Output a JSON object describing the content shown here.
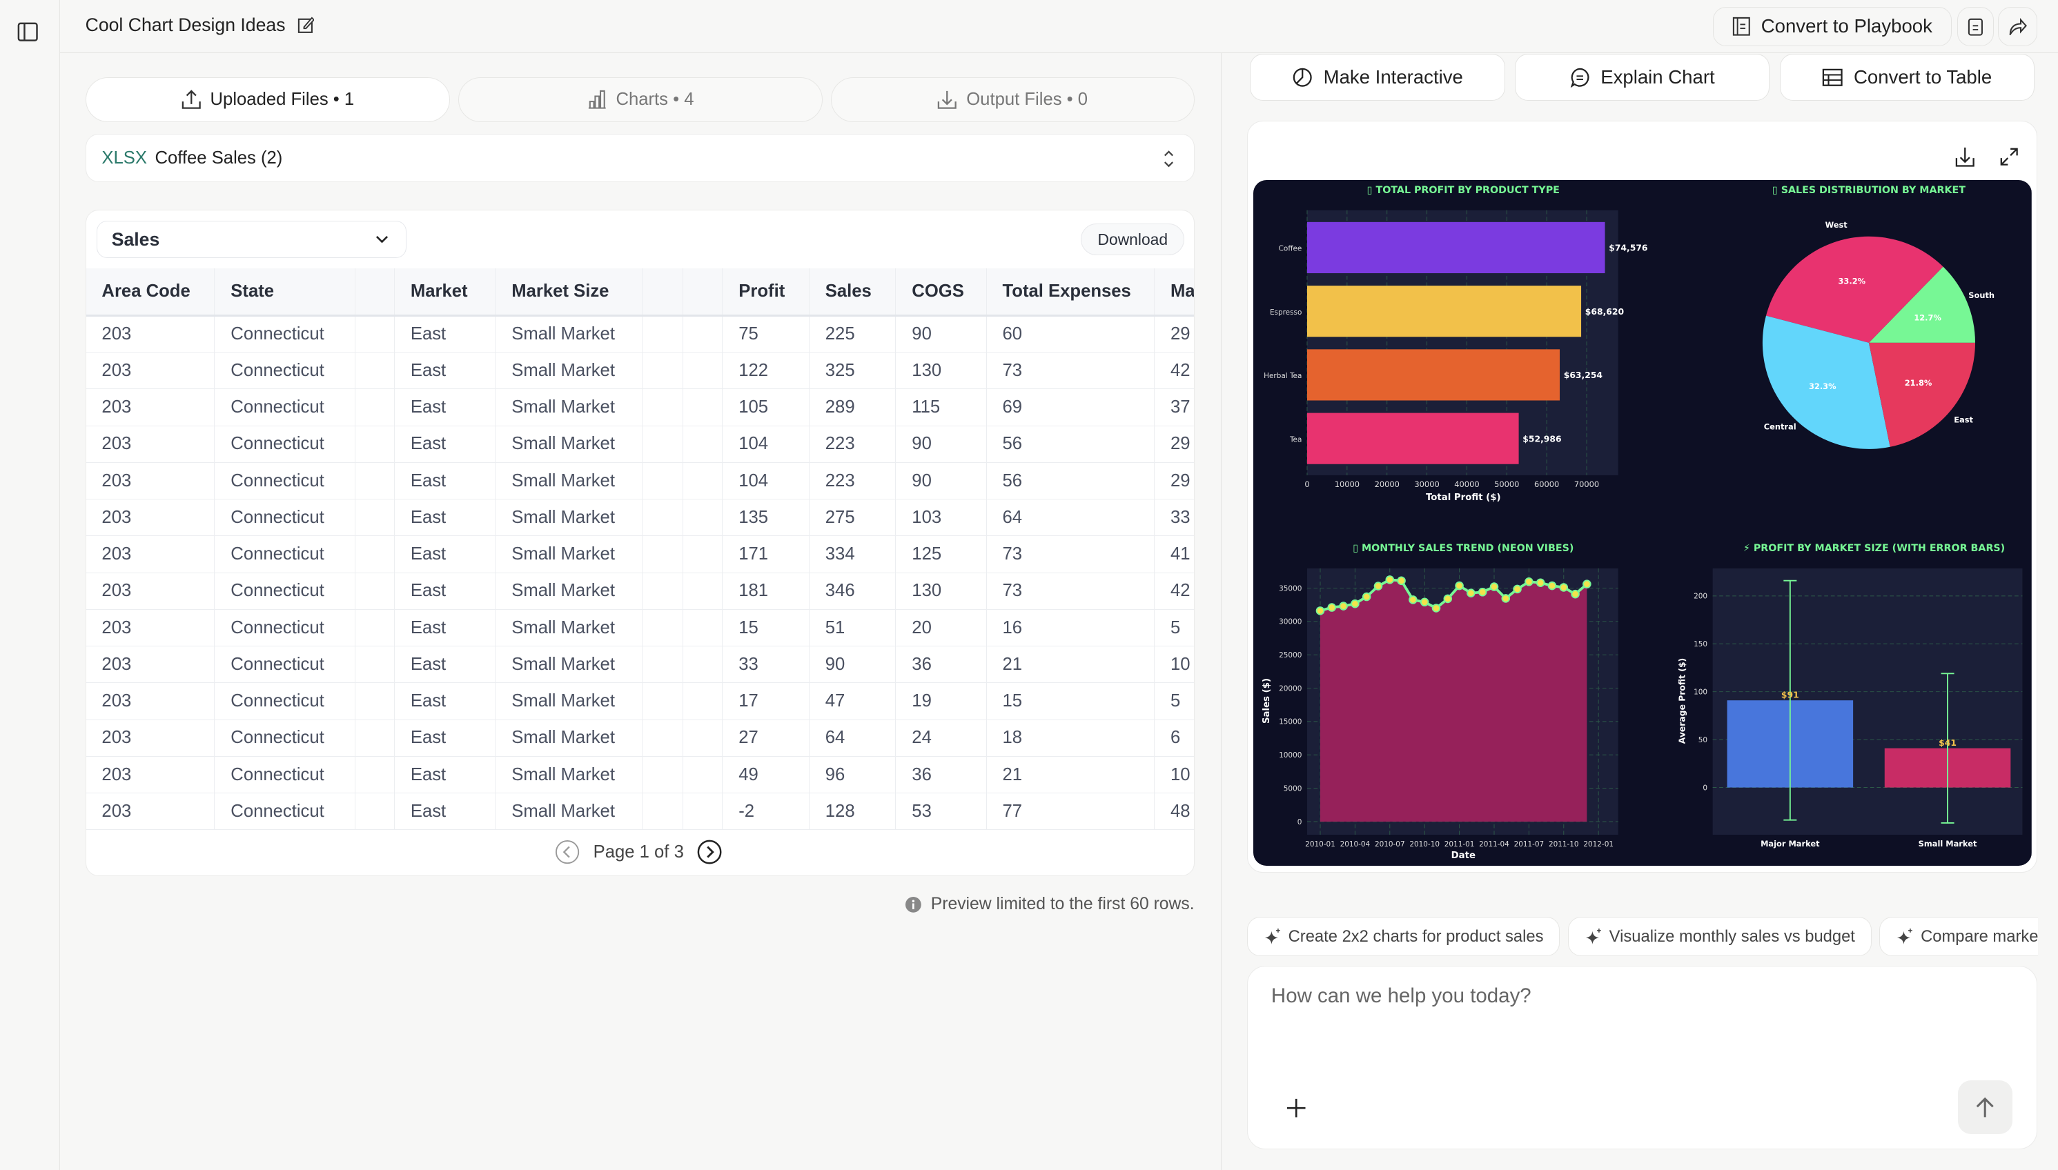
{
  "header": {
    "title": "Cool Chart Design Ideas",
    "convert_playbook": "Convert to Playbook"
  },
  "tabs": [
    {
      "label": "Uploaded Files • 1",
      "active": true
    },
    {
      "label": "Charts • 4"
    },
    {
      "label": "Output Files • 0"
    }
  ],
  "file": {
    "type": "XLSX",
    "name": "Coffee Sales (2)"
  },
  "sheet_select": {
    "value": "Sales"
  },
  "download_label": "Download",
  "table": {
    "columns": [
      "Area Code",
      "State",
      "",
      "Market",
      "Market Size",
      "",
      "",
      "Profit",
      "Sales",
      "COGS",
      "Total Expenses",
      "Ma"
    ],
    "rows": [
      [
        "203",
        "Connecticut",
        "",
        "East",
        "Small Market",
        "",
        "",
        "75",
        "225",
        "90",
        "60",
        "29"
      ],
      [
        "203",
        "Connecticut",
        "",
        "East",
        "Small Market",
        "",
        "",
        "122",
        "325",
        "130",
        "73",
        "42"
      ],
      [
        "203",
        "Connecticut",
        "",
        "East",
        "Small Market",
        "",
        "",
        "105",
        "289",
        "115",
        "69",
        "37"
      ],
      [
        "203",
        "Connecticut",
        "",
        "East",
        "Small Market",
        "",
        "",
        "104",
        "223",
        "90",
        "56",
        "29"
      ],
      [
        "203",
        "Connecticut",
        "",
        "East",
        "Small Market",
        "",
        "",
        "104",
        "223",
        "90",
        "56",
        "29"
      ],
      [
        "203",
        "Connecticut",
        "",
        "East",
        "Small Market",
        "",
        "",
        "135",
        "275",
        "103",
        "64",
        "33"
      ],
      [
        "203",
        "Connecticut",
        "",
        "East",
        "Small Market",
        "",
        "",
        "171",
        "334",
        "125",
        "73",
        "41"
      ],
      [
        "203",
        "Connecticut",
        "",
        "East",
        "Small Market",
        "",
        "",
        "181",
        "346",
        "130",
        "73",
        "42"
      ],
      [
        "203",
        "Connecticut",
        "",
        "East",
        "Small Market",
        "",
        "",
        "15",
        "51",
        "20",
        "16",
        "5"
      ],
      [
        "203",
        "Connecticut",
        "",
        "East",
        "Small Market",
        "",
        "",
        "33",
        "90",
        "36",
        "21",
        "10"
      ],
      [
        "203",
        "Connecticut",
        "",
        "East",
        "Small Market",
        "",
        "",
        "17",
        "47",
        "19",
        "15",
        "5"
      ],
      [
        "203",
        "Connecticut",
        "",
        "East",
        "Small Market",
        "",
        "",
        "27",
        "64",
        "24",
        "18",
        "6"
      ],
      [
        "203",
        "Connecticut",
        "",
        "East",
        "Small Market",
        "",
        "",
        "49",
        "96",
        "36",
        "21",
        "10"
      ],
      [
        "203",
        "Connecticut",
        "",
        "East",
        "Small Market",
        "",
        "",
        "-2",
        "128",
        "53",
        "77",
        "48"
      ]
    ]
  },
  "pagination": {
    "label": "Page 1 of 3"
  },
  "preview_note": "Preview limited to the first 60 rows.",
  "actions": {
    "make_interactive": "Make Interactive",
    "explain_chart": "Explain Chart",
    "convert_table": "Convert to Table"
  },
  "suggestions": [
    "Create 2x2 charts for product sales",
    "Visualize monthly sales vs budget",
    "Compare marke"
  ],
  "chat": {
    "placeholder": "How can we help you today?"
  },
  "colors": {
    "figure_bg": "#0d0f24",
    "plot_bg": "#1b1f38",
    "title": "#77f795",
    "accent_label": "#f2c14a"
  },
  "chart_data": [
    {
      "type": "bar",
      "orientation": "horizontal",
      "title": "▯ TOTAL PROFIT BY PRODUCT TYPE",
      "xlabel": "Total Profit ($)",
      "categories": [
        "Coffee",
        "Espresso",
        "Herbal Tea",
        "Tea"
      ],
      "values": [
        74576,
        68620,
        63254,
        52986
      ],
      "data_labels": [
        "$74,576",
        "$68,620",
        "$63,254",
        "$52,986"
      ],
      "colors": [
        "#7b3be0",
        "#f2c14a",
        "#e5632e",
        "#e8336f"
      ],
      "xticks": [
        "0",
        "10000",
        "20000",
        "30000",
        "40000",
        "50000",
        "60000",
        "70000"
      ],
      "xlim": [
        0,
        78000
      ],
      "grid": true
    },
    {
      "type": "pie",
      "title": "▯ SALES DISTRIBUTION BY MARKET",
      "categories": [
        "South",
        "West",
        "Central",
        "East"
      ],
      "values": [
        12.7,
        33.2,
        32.3,
        21.8
      ],
      "labels": [
        "12.7%",
        "33.2%",
        "32.3%",
        "21.8%"
      ],
      "colors": [
        "#77f795",
        "#e8336f",
        "#62d6fb",
        "#e6395d"
      ]
    },
    {
      "type": "area",
      "title": "▯ MONTHLY SALES TREND (NEON VIBES)",
      "xlabel": "Date",
      "ylabel": "Sales ($)",
      "x": [
        "2010-01",
        "2010-02",
        "2010-03",
        "2010-04",
        "2010-05",
        "2010-06",
        "2010-07",
        "2010-08",
        "2010-09",
        "2010-10",
        "2010-11",
        "2010-12",
        "2011-01",
        "2011-02",
        "2011-03",
        "2011-04",
        "2011-05",
        "2011-06",
        "2011-07",
        "2011-08",
        "2011-09",
        "2011-10",
        "2011-11",
        "2011-12"
      ],
      "values": [
        31600,
        32100,
        32300,
        32650,
        33700,
        35300,
        36250,
        36100,
        33250,
        32900,
        32000,
        33400,
        35350,
        34250,
        34400,
        35200,
        33450,
        34850,
        35950,
        35800,
        35350,
        35100,
        34100,
        35600
      ],
      "xticks": [
        "2010-01",
        "2010-04",
        "2010-07",
        "2010-10",
        "2011-01",
        "2011-04",
        "2011-07",
        "2011-10",
        "2012-01"
      ],
      "yticks": [
        "0",
        "5000",
        "10000",
        "15000",
        "20000",
        "25000",
        "30000",
        "35000"
      ],
      "ylim": [
        0,
        37500
      ],
      "grid": true
    },
    {
      "type": "bar",
      "title": "⚡ PROFIT BY MARKET SIZE (WITH ERROR BARS)",
      "ylabel": "Average Profit ($)",
      "categories": [
        "Major Market",
        "Small Market"
      ],
      "values": [
        91,
        41
      ],
      "errors": [
        125,
        78
      ],
      "data_labels": [
        "$91",
        "$41"
      ],
      "colors": [
        "#4876dc",
        "#c82c65"
      ],
      "yticks": [
        "0",
        "50",
        "100",
        "150",
        "200"
      ],
      "ylim": [
        -48,
        230
      ],
      "grid": true
    }
  ]
}
